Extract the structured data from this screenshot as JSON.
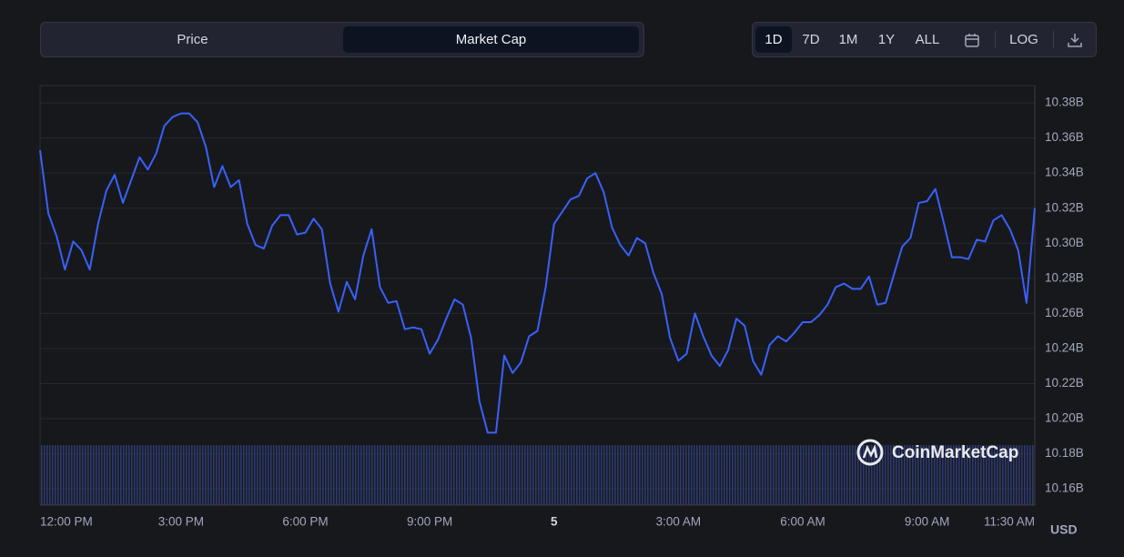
{
  "tabs": [
    "Price",
    "Market Cap"
  ],
  "range_buttons": [
    "1D",
    "7D",
    "1M",
    "1Y",
    "ALL"
  ],
  "log_button": "LOG",
  "currency": "USD",
  "watermark": "CoinMarketCap",
  "chart_data": {
    "type": "line",
    "color": "#3861fb",
    "grid": true,
    "ylim": [
      10.1507,
      10.3899
    ],
    "yticks": [
      {
        "value": 10.16,
        "label": "10.16B"
      },
      {
        "value": 10.18,
        "label": "10.18B"
      },
      {
        "value": 10.2,
        "label": "10.20B"
      },
      {
        "value": 10.22,
        "label": "10.22B"
      },
      {
        "value": 10.24,
        "label": "10.24B"
      },
      {
        "value": 10.26,
        "label": "10.26B"
      },
      {
        "value": 10.28,
        "label": "10.28B"
      },
      {
        "value": 10.3,
        "label": "10.30B"
      },
      {
        "value": 10.32,
        "label": "10.32B"
      },
      {
        "value": 10.34,
        "label": "10.34B"
      },
      {
        "value": 10.36,
        "label": "10.36B"
      },
      {
        "value": 10.38,
        "label": "10.38B"
      }
    ],
    "categories": [
      null,
      null,
      "12:00 PM",
      null,
      null,
      null,
      null,
      null,
      null,
      null,
      null,
      null,
      null,
      null,
      null,
      null,
      null,
      "3:00 PM",
      null,
      null,
      null,
      null,
      null,
      null,
      null,
      null,
      null,
      null,
      null,
      null,
      null,
      null,
      "6:00 PM",
      null,
      null,
      null,
      null,
      null,
      null,
      null,
      null,
      null,
      null,
      null,
      null,
      null,
      null,
      "9:00 PM",
      null,
      null,
      null,
      null,
      null,
      null,
      null,
      null,
      null,
      null,
      null,
      null,
      null,
      null,
      "5",
      null,
      null,
      null,
      null,
      null,
      null,
      null,
      null,
      null,
      null,
      null,
      null,
      null,
      null,
      "3:00 AM",
      null,
      null,
      null,
      null,
      null,
      null,
      null,
      null,
      null,
      null,
      null,
      null,
      null,
      null,
      "6:00 AM",
      null,
      null,
      null,
      null,
      null,
      null,
      null,
      null,
      null,
      null,
      null,
      null,
      null,
      null,
      "9:00 AM",
      null,
      null,
      null,
      null,
      null,
      null,
      null,
      null,
      null,
      null,
      null,
      "11:30 AM",
      null
    ],
    "values": [
      10.353,
      10.317,
      10.304,
      10.285,
      10.301,
      10.296,
      10.285,
      10.311,
      10.33,
      10.339,
      10.323,
      10.336,
      10.349,
      10.342,
      10.351,
      10.367,
      10.372,
      10.374,
      10.374,
      10.369,
      10.355,
      10.332,
      10.344,
      10.332,
      10.336,
      10.311,
      10.299,
      10.297,
      10.31,
      10.316,
      10.316,
      10.305,
      10.306,
      10.314,
      10.308,
      10.277,
      10.261,
      10.278,
      10.268,
      10.293,
      10.308,
      10.275,
      10.266,
      10.267,
      10.251,
      10.252,
      10.251,
      10.237,
      10.245,
      10.257,
      10.268,
      10.265,
      10.246,
      10.21,
      10.192,
      10.192,
      10.236,
      10.226,
      10.232,
      10.247,
      10.25,
      10.275,
      10.311,
      10.318,
      10.325,
      10.327,
      10.337,
      10.34,
      10.329,
      10.309,
      10.299,
      10.293,
      10.303,
      10.3,
      10.283,
      10.271,
      10.246,
      10.233,
      10.237,
      10.26,
      10.247,
      10.236,
      10.23,
      10.239,
      10.257,
      10.253,
      10.233,
      10.225,
      10.242,
      10.247,
      10.244,
      10.249,
      10.255,
      10.255,
      10.259,
      10.265,
      10.275,
      10.277,
      10.274,
      10.274,
      10.281,
      10.265,
      10.266,
      10.282,
      10.298,
      10.303,
      10.323,
      10.324,
      10.331,
      10.312,
      10.292,
      10.292,
      10.291,
      10.302,
      10.301,
      10.313,
      10.316,
      10.308,
      10.296,
      10.266,
      10.32
    ]
  }
}
